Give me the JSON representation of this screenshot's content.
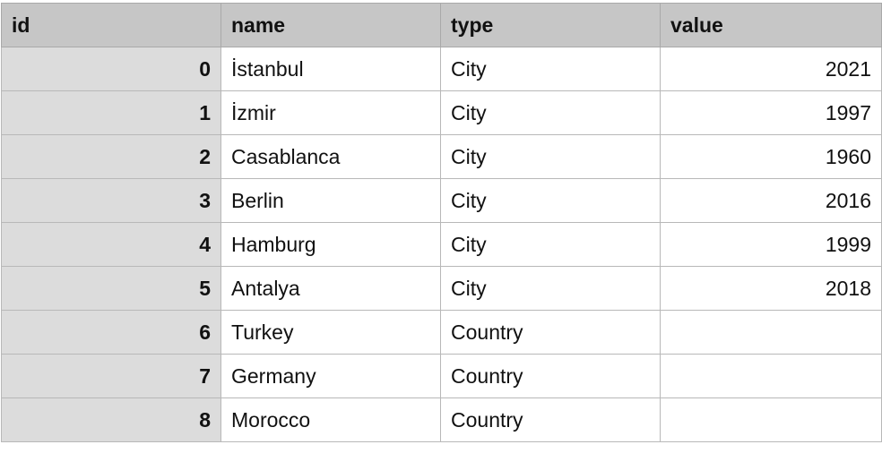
{
  "table": {
    "columns": [
      "id",
      "name",
      "type",
      "value"
    ],
    "rows": [
      {
        "id": "0",
        "name": "İstanbul",
        "type": "City",
        "value": "2021"
      },
      {
        "id": "1",
        "name": "İzmir",
        "type": "City",
        "value": "1997"
      },
      {
        "id": "2",
        "name": "Casablanca",
        "type": "City",
        "value": "1960"
      },
      {
        "id": "3",
        "name": "Berlin",
        "type": "City",
        "value": "2016"
      },
      {
        "id": "4",
        "name": "Hamburg",
        "type": "City",
        "value": "1999"
      },
      {
        "id": "5",
        "name": "Antalya",
        "type": "City",
        "value": "2018"
      },
      {
        "id": "6",
        "name": "Turkey",
        "type": "Country",
        "value": ""
      },
      {
        "id": "7",
        "name": "Germany",
        "type": "Country",
        "value": ""
      },
      {
        "id": "8",
        "name": "Morocco",
        "type": "Country",
        "value": ""
      }
    ]
  },
  "colors": {
    "header_bg": "#c6c6c6",
    "id_column_bg": "#dcdcdc",
    "grid_line": "#b8b8b8"
  }
}
